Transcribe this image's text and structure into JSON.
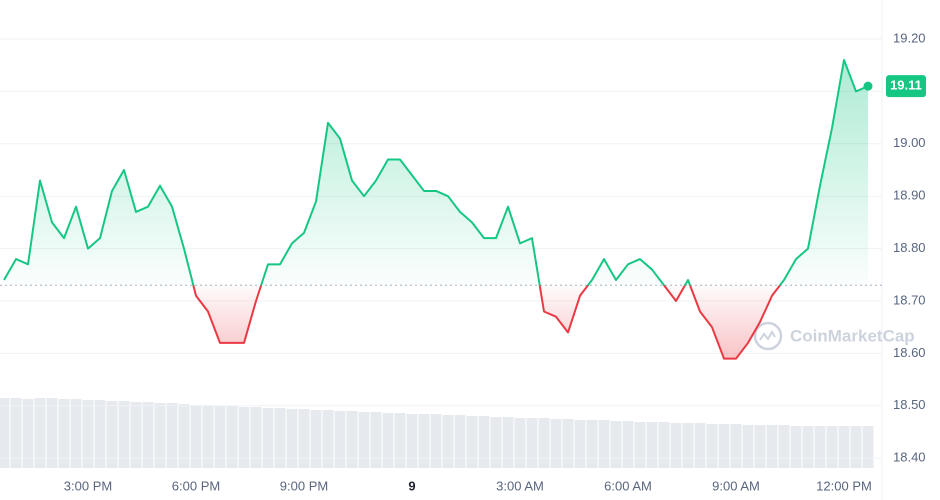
{
  "chart_data": {
    "type": "line",
    "categories": [
      null,
      null,
      null,
      null,
      null,
      null,
      null,
      "3:00 PM",
      null,
      null,
      null,
      null,
      null,
      null,
      null,
      null,
      "6:00 PM",
      null,
      null,
      null,
      null,
      null,
      null,
      null,
      null,
      "9:00 PM",
      null,
      null,
      null,
      null,
      null,
      null,
      null,
      null,
      "9",
      null,
      null,
      null,
      null,
      null,
      null,
      null,
      null,
      "3:00 AM",
      null,
      null,
      null,
      null,
      null,
      null,
      null,
      null,
      "6:00 AM",
      null,
      null,
      null,
      null,
      null,
      null,
      null,
      null,
      "9:00 AM",
      null,
      null,
      null,
      null,
      null,
      null,
      null,
      null,
      "12:00 PM",
      null,
      null
    ],
    "values": [
      18.74,
      18.78,
      18.77,
      18.93,
      18.85,
      18.82,
      18.88,
      18.8,
      18.82,
      18.91,
      18.95,
      18.87,
      18.88,
      18.92,
      18.88,
      18.8,
      18.71,
      18.68,
      18.62,
      18.62,
      18.62,
      18.7,
      18.77,
      18.77,
      18.81,
      18.83,
      18.89,
      19.04,
      19.01,
      18.93,
      18.9,
      18.93,
      18.97,
      18.97,
      18.94,
      18.91,
      18.91,
      18.9,
      18.87,
      18.85,
      18.82,
      18.82,
      18.88,
      18.81,
      18.82,
      18.68,
      18.67,
      18.64,
      18.71,
      18.74,
      18.78,
      18.74,
      18.77,
      18.78,
      18.76,
      18.73,
      18.7,
      18.74,
      18.68,
      18.65,
      18.59,
      18.59,
      18.62,
      18.66,
      18.71,
      18.74,
      18.78,
      18.8,
      18.92,
      19.03,
      19.16,
      19.1,
      19.11
    ],
    "volume": [
      70,
      70,
      69,
      70,
      70,
      69,
      69,
      68,
      68,
      67,
      67,
      66,
      66,
      65,
      65,
      64,
      63,
      63,
      62,
      62,
      61,
      61,
      60,
      60,
      59,
      59,
      58,
      58,
      57,
      57,
      56,
      56,
      55,
      55,
      54,
      54,
      54,
      53,
      53,
      52,
      52,
      51,
      51,
      50,
      50,
      50,
      49,
      49,
      48,
      48,
      48,
      47,
      47,
      46,
      46,
      46,
      45,
      45,
      45,
      44,
      44,
      44,
      43,
      43,
      43,
      43,
      42,
      42,
      42,
      42,
      42,
      42,
      42
    ],
    "baseline": 18.73,
    "current_price": {
      "value": 19.11,
      "label": "19.11"
    },
    "watermark": "CoinMarketCap",
    "up_color": "#16c784",
    "down_color": "#ea3943",
    "volume_color": "#e6e9ee",
    "ylim": [
      18.3775,
      19.2744
    ],
    "yticks": [
      {
        "value": 18.4,
        "label": "18.40"
      },
      {
        "value": 18.5,
        "label": "18.50"
      },
      {
        "value": 18.6,
        "label": "18.60"
      },
      {
        "value": 18.7,
        "label": "18.70"
      },
      {
        "value": 18.8,
        "label": "18.80"
      },
      {
        "value": 18.9,
        "label": "18.90"
      },
      {
        "value": 19.0,
        "label": "19.00"
      },
      {
        "value": 19.1,
        "label": "19.10"
      },
      {
        "value": 19.2,
        "label": "19.20"
      }
    ],
    "grid": true
  }
}
